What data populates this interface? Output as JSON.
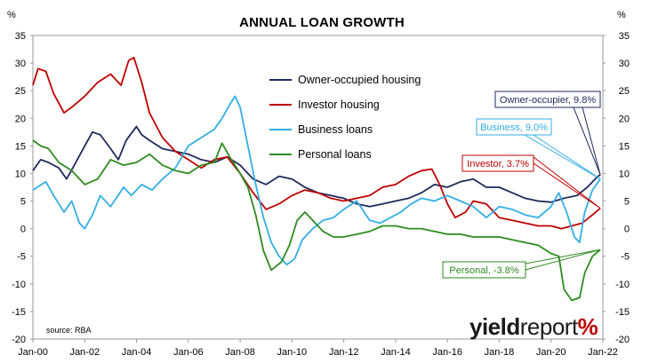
{
  "chart_data": {
    "type": "line",
    "title": "ANNUAL LOAN GROWTH",
    "y_unit_left": "%",
    "y_unit_right": "%",
    "ylim": [
      -20,
      35
    ],
    "y_ticks": [
      "35",
      "30",
      "25",
      "20",
      "15",
      "10",
      "5",
      "0",
      "-5",
      "-10",
      "-15",
      "-20"
    ],
    "x_ticks": [
      "Jan-00",
      "Jan-02",
      "Jan-04",
      "Jan-06",
      "Jan-08",
      "Jan-10",
      "Jan-12",
      "Jan-14",
      "Jan-16",
      "Jan-18",
      "Jan-20",
      "Jan-22"
    ],
    "x_range": [
      2000.0,
      2022.0
    ],
    "source": "source: RBA",
    "grid": false,
    "legend_position": "top-center",
    "series": [
      {
        "name": "Owner-occupied housing",
        "color": "#1f2a5c",
        "points": [
          [
            2000.0,
            10.5
          ],
          [
            2000.3,
            12.5
          ],
          [
            2000.6,
            12.0
          ],
          [
            2001.0,
            11.0
          ],
          [
            2001.3,
            9.0
          ],
          [
            2001.6,
            11.5
          ],
          [
            2002.0,
            15.0
          ],
          [
            2002.3,
            17.5
          ],
          [
            2002.6,
            17.0
          ],
          [
            2003.0,
            14.5
          ],
          [
            2003.3,
            12.5
          ],
          [
            2003.6,
            16.0
          ],
          [
            2004.0,
            18.5
          ],
          [
            2004.2,
            17.0
          ],
          [
            2004.5,
            16.0
          ],
          [
            2005.0,
            14.5
          ],
          [
            2005.5,
            14.0
          ],
          [
            2006.0,
            13.5
          ],
          [
            2006.5,
            12.5
          ],
          [
            2007.0,
            12.0
          ],
          [
            2007.5,
            13.0
          ],
          [
            2008.0,
            11.5
          ],
          [
            2008.5,
            9.0
          ],
          [
            2009.0,
            8.0
          ],
          [
            2009.5,
            9.5
          ],
          [
            2010.0,
            9.0
          ],
          [
            2010.5,
            7.5
          ],
          [
            2011.0,
            6.5
          ],
          [
            2011.5,
            6.0
          ],
          [
            2012.0,
            5.5
          ],
          [
            2012.5,
            4.5
          ],
          [
            2013.0,
            4.0
          ],
          [
            2013.5,
            4.5
          ],
          [
            2014.0,
            5.0
          ],
          [
            2014.5,
            5.5
          ],
          [
            2015.0,
            6.5
          ],
          [
            2015.5,
            8.0
          ],
          [
            2016.0,
            7.5
          ],
          [
            2016.5,
            8.5
          ],
          [
            2017.0,
            9.0
          ],
          [
            2017.5,
            7.5
          ],
          [
            2018.0,
            7.5
          ],
          [
            2018.5,
            6.5
          ],
          [
            2019.0,
            5.5
          ],
          [
            2019.5,
            5.0
          ],
          [
            2020.0,
            4.8
          ],
          [
            2020.5,
            5.5
          ],
          [
            2021.0,
            6.0
          ],
          [
            2021.4,
            7.5
          ],
          [
            2021.7,
            9.0
          ],
          [
            2021.9,
            9.8
          ]
        ]
      },
      {
        "name": "Investor housing",
        "color": "#c00000",
        "points": [
          [
            2000.0,
            26.0
          ],
          [
            2000.2,
            29.0
          ],
          [
            2000.5,
            28.5
          ],
          [
            2000.8,
            24.5
          ],
          [
            2001.2,
            21.0
          ],
          [
            2001.5,
            22.0
          ],
          [
            2002.0,
            24.0
          ],
          [
            2002.5,
            26.5
          ],
          [
            2003.0,
            28.0
          ],
          [
            2003.4,
            26.0
          ],
          [
            2003.7,
            30.5
          ],
          [
            2003.9,
            31.0
          ],
          [
            2004.2,
            26.5
          ],
          [
            2004.5,
            21.0
          ],
          [
            2005.0,
            16.5
          ],
          [
            2005.5,
            14.0
          ],
          [
            2006.0,
            12.5
          ],
          [
            2006.5,
            11.0
          ],
          [
            2007.0,
            12.5
          ],
          [
            2007.5,
            13.0
          ],
          [
            2008.0,
            10.0
          ],
          [
            2008.5,
            6.5
          ],
          [
            2009.0,
            3.5
          ],
          [
            2009.5,
            4.5
          ],
          [
            2010.0,
            6.0
          ],
          [
            2010.5,
            7.0
          ],
          [
            2011.0,
            6.5
          ],
          [
            2011.5,
            5.5
          ],
          [
            2012.0,
            5.0
          ],
          [
            2012.5,
            5.5
          ],
          [
            2013.0,
            6.0
          ],
          [
            2013.5,
            7.5
          ],
          [
            2014.0,
            8.0
          ],
          [
            2014.5,
            9.5
          ],
          [
            2015.0,
            10.5
          ],
          [
            2015.4,
            10.8
          ],
          [
            2015.7,
            8.0
          ],
          [
            2016.0,
            4.5
          ],
          [
            2016.3,
            2.0
          ],
          [
            2016.7,
            3.0
          ],
          [
            2017.0,
            5.0
          ],
          [
            2017.5,
            4.5
          ],
          [
            2018.0,
            2.0
          ],
          [
            2018.5,
            1.5
          ],
          [
            2019.0,
            1.0
          ],
          [
            2019.5,
            0.5
          ],
          [
            2020.0,
            0.5
          ],
          [
            2020.4,
            0.0
          ],
          [
            2020.8,
            0.5
          ],
          [
            2021.2,
            1.0
          ],
          [
            2021.6,
            2.5
          ],
          [
            2021.9,
            3.7
          ]
        ]
      },
      {
        "name": "Business loans",
        "color": "#33aee6",
        "points": [
          [
            2000.0,
            7.0
          ],
          [
            2000.5,
            8.5
          ],
          [
            2000.8,
            6.0
          ],
          [
            2001.2,
            3.0
          ],
          [
            2001.5,
            5.0
          ],
          [
            2001.8,
            1.0
          ],
          [
            2002.0,
            0.0
          ],
          [
            2002.3,
            2.5
          ],
          [
            2002.6,
            6.0
          ],
          [
            2003.0,
            4.0
          ],
          [
            2003.5,
            7.5
          ],
          [
            2003.8,
            6.0
          ],
          [
            2004.2,
            8.0
          ],
          [
            2004.6,
            7.0
          ],
          [
            2005.0,
            9.0
          ],
          [
            2005.5,
            11.0
          ],
          [
            2006.0,
            15.0
          ],
          [
            2006.5,
            16.5
          ],
          [
            2007.0,
            18.0
          ],
          [
            2007.3,
            20.0
          ],
          [
            2007.6,
            22.5
          ],
          [
            2007.8,
            24.0
          ],
          [
            2008.0,
            22.0
          ],
          [
            2008.3,
            15.0
          ],
          [
            2008.6,
            8.0
          ],
          [
            2008.9,
            2.0
          ],
          [
            2009.2,
            -2.5
          ],
          [
            2009.5,
            -5.0
          ],
          [
            2009.8,
            -6.5
          ],
          [
            2010.1,
            -5.5
          ],
          [
            2010.4,
            -2.0
          ],
          [
            2010.8,
            0.0
          ],
          [
            2011.2,
            1.5
          ],
          [
            2011.6,
            2.0
          ],
          [
            2012.0,
            3.5
          ],
          [
            2012.5,
            5.0
          ],
          [
            2013.0,
            1.5
          ],
          [
            2013.4,
            1.0
          ],
          [
            2013.8,
            2.0
          ],
          [
            2014.2,
            3.0
          ],
          [
            2014.6,
            4.5
          ],
          [
            2015.0,
            5.5
          ],
          [
            2015.5,
            5.0
          ],
          [
            2016.0,
            6.0
          ],
          [
            2016.5,
            5.0
          ],
          [
            2017.0,
            4.0
          ],
          [
            2017.5,
            2.0
          ],
          [
            2018.0,
            4.0
          ],
          [
            2018.5,
            3.5
          ],
          [
            2019.0,
            2.5
          ],
          [
            2019.5,
            2.0
          ],
          [
            2020.0,
            4.0
          ],
          [
            2020.3,
            6.5
          ],
          [
            2020.6,
            3.0
          ],
          [
            2020.9,
            -1.5
          ],
          [
            2021.1,
            -2.5
          ],
          [
            2021.3,
            3.0
          ],
          [
            2021.6,
            7.0
          ],
          [
            2021.9,
            9.0
          ]
        ]
      },
      {
        "name": "Personal loans",
        "color": "#2e8b1f",
        "points": [
          [
            2000.0,
            16.0
          ],
          [
            2000.3,
            15.0
          ],
          [
            2000.6,
            14.5
          ],
          [
            2001.0,
            12.0
          ],
          [
            2001.5,
            10.5
          ],
          [
            2002.0,
            8.0
          ],
          [
            2002.5,
            9.0
          ],
          [
            2003.0,
            12.5
          ],
          [
            2003.5,
            11.5
          ],
          [
            2004.0,
            12.0
          ],
          [
            2004.5,
            13.5
          ],
          [
            2005.0,
            11.5
          ],
          [
            2005.5,
            10.5
          ],
          [
            2006.0,
            10.0
          ],
          [
            2006.5,
            11.5
          ],
          [
            2007.0,
            12.0
          ],
          [
            2007.3,
            15.5
          ],
          [
            2007.6,
            13.0
          ],
          [
            2008.0,
            10.0
          ],
          [
            2008.3,
            7.5
          ],
          [
            2008.6,
            2.5
          ],
          [
            2008.9,
            -4.0
          ],
          [
            2009.2,
            -7.5
          ],
          [
            2009.6,
            -6.0
          ],
          [
            2009.9,
            -3.0
          ],
          [
            2010.2,
            1.5
          ],
          [
            2010.5,
            3.0
          ],
          [
            2010.8,
            1.5
          ],
          [
            2011.2,
            -0.5
          ],
          [
            2011.6,
            -1.5
          ],
          [
            2012.0,
            -1.5
          ],
          [
            2012.5,
            -1.0
          ],
          [
            2013.0,
            -0.5
          ],
          [
            2013.5,
            0.5
          ],
          [
            2014.0,
            0.5
          ],
          [
            2014.5,
            0.0
          ],
          [
            2015.0,
            0.0
          ],
          [
            2015.5,
            -0.5
          ],
          [
            2016.0,
            -1.0
          ],
          [
            2016.5,
            -1.0
          ],
          [
            2017.0,
            -1.5
          ],
          [
            2017.5,
            -1.5
          ],
          [
            2018.0,
            -1.5
          ],
          [
            2018.5,
            -2.0
          ],
          [
            2019.0,
            -2.5
          ],
          [
            2019.5,
            -3.0
          ],
          [
            2020.0,
            -4.5
          ],
          [
            2020.3,
            -5.0
          ],
          [
            2020.5,
            -11.0
          ],
          [
            2020.8,
            -13.0
          ],
          [
            2021.1,
            -12.5
          ],
          [
            2021.3,
            -8.0
          ],
          [
            2021.6,
            -5.0
          ],
          [
            2021.9,
            -3.8
          ]
        ]
      }
    ],
    "callouts": [
      {
        "label": "Owner-occupier, 9.8%",
        "series": 0,
        "value": 9.8
      },
      {
        "label": "Business, 9.0%",
        "series": 2,
        "value": 9.0
      },
      {
        "label": "Investor, 3.7%",
        "series": 1,
        "value": 3.7
      },
      {
        "label": "Personal, -3.8%",
        "series": 3,
        "value": -3.8
      }
    ]
  },
  "logo": {
    "part1": "yield",
    "part2": "report",
    "part3": "%"
  }
}
